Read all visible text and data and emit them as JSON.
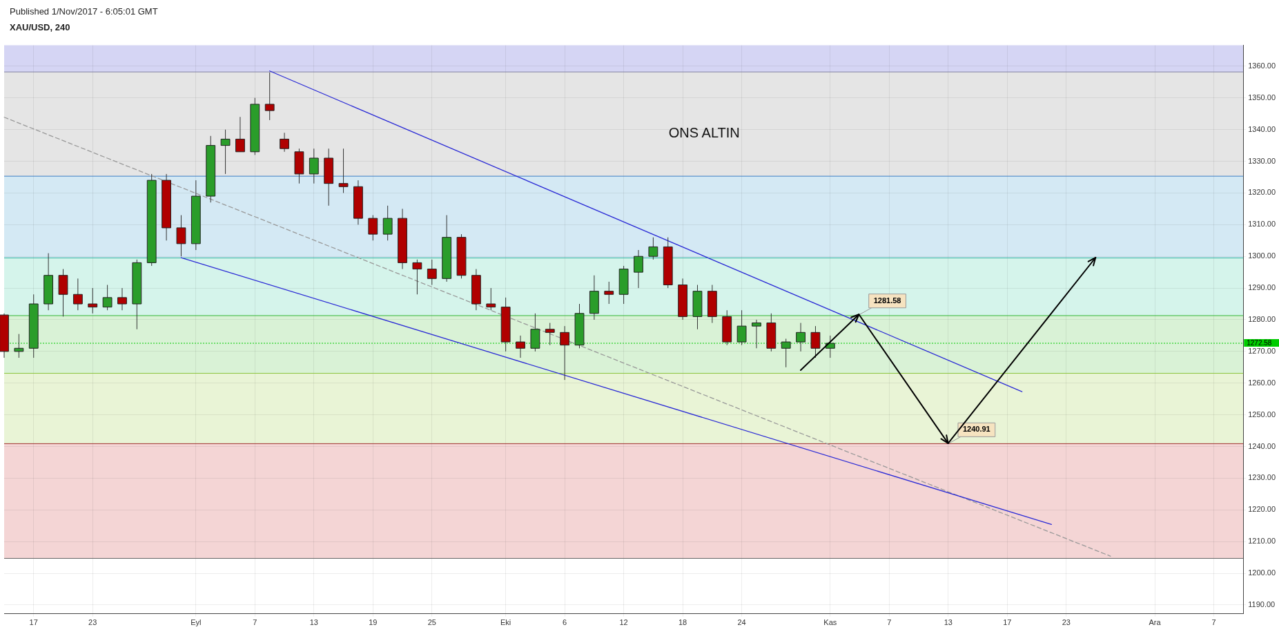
{
  "chart_data": {
    "type": "candlestick",
    "title": "XAU/USD, 240",
    "annotations": [
      "Published 1/Nov/2017 - 6:05:01 GMT",
      "ONS ALTIN",
      {
        "text": "1281.58",
        "y": 1281.58
      },
      {
        "text": "1240.91",
        "y": 1240.91
      }
    ],
    "categories": [
      null,
      null,
      "17",
      null,
      null,
      null,
      "23",
      null,
      null,
      null,
      null,
      null,
      null,
      "Eyl",
      null,
      null,
      null,
      "7",
      null,
      null,
      null,
      "13",
      null,
      null,
      null,
      "19",
      null,
      null,
      null,
      "25",
      null,
      null,
      null,
      null,
      "Eki",
      null,
      null,
      null,
      "6",
      null,
      null,
      null,
      "12",
      null,
      null,
      null,
      "18",
      null,
      null,
      null,
      "24",
      null,
      null,
      null,
      null,
      null,
      "Kas",
      null,
      null,
      null,
      "7",
      null,
      null,
      null,
      "13",
      null,
      null,
      null,
      "17",
      null,
      null,
      null,
      "23",
      null,
      null,
      null,
      null,
      null,
      "Ara",
      null,
      null,
      null,
      "7",
      null,
      null
    ],
    "ohlc": [
      [
        1281.5,
        1282,
        1268,
        1270
      ],
      [
        1270,
        1275.5,
        1268,
        1271
      ],
      [
        1271,
        1288,
        1268,
        1285
      ],
      [
        1285,
        1301,
        1283,
        1294
      ],
      [
        1294,
        1296,
        1281,
        1288
      ],
      [
        1288,
        1293,
        1283,
        1285
      ],
      [
        1285,
        1290,
        1282,
        1284
      ],
      [
        1284,
        1291,
        1283,
        1287
      ],
      [
        1287,
        1290,
        1283,
        1285
      ],
      [
        1285,
        1299,
        1277,
        1298
      ],
      [
        1298,
        1326,
        1297,
        1324
      ],
      [
        1324,
        1326,
        1305,
        1309
      ],
      [
        1309,
        1313,
        1300,
        1304
      ],
      [
        1304,
        1324,
        1302,
        1319
      ],
      [
        1319,
        1338,
        1317,
        1335
      ],
      [
        1335,
        1340,
        1326,
        1337
      ],
      [
        1337,
        1344,
        1333,
        1333
      ],
      [
        1333,
        1350,
        1332,
        1348
      ],
      [
        1348,
        1358,
        1343,
        1346
      ],
      [
        1337,
        1339,
        1333,
        1334
      ],
      [
        1333,
        1334,
        1323,
        1326
      ],
      [
        1326,
        1334,
        1323,
        1331
      ],
      [
        1331,
        1334,
        1316,
        1323
      ],
      [
        1323,
        1334,
        1320,
        1322
      ],
      [
        1322,
        1324,
        1310,
        1312
      ],
      [
        1312,
        1313,
        1305,
        1307
      ],
      [
        1307,
        1316,
        1305,
        1312
      ],
      [
        1312,
        1315,
        1296,
        1298
      ],
      [
        1298,
        1299,
        1288,
        1296
      ],
      [
        1296,
        1299,
        1291,
        1293
      ],
      [
        1293,
        1313,
        1292,
        1306
      ],
      [
        1306,
        1307,
        1293,
        1294
      ],
      [
        1294,
        1296,
        1283,
        1285
      ],
      [
        1285,
        1290,
        1283,
        1284
      ],
      [
        1284,
        1287,
        1270,
        1273
      ],
      [
        1273,
        1275,
        1268,
        1271
      ],
      [
        1271,
        1282,
        1270,
        1277
      ],
      [
        1277,
        1279,
        1272,
        1276
      ],
      [
        1276,
        1278,
        1261,
        1272
      ],
      [
        1272,
        1285,
        1271,
        1282
      ],
      [
        1282,
        1294,
        1280,
        1289
      ],
      [
        1289,
        1292,
        1285,
        1288
      ],
      [
        1288,
        1297,
        1285,
        1296
      ],
      [
        1295,
        1302,
        1290,
        1300
      ],
      [
        1300,
        1306,
        1299,
        1303
      ],
      [
        1303,
        1306,
        1290,
        1291
      ],
      [
        1291,
        1293,
        1280,
        1281
      ],
      [
        1281,
        1291,
        1277,
        1289
      ],
      [
        1289,
        1291,
        1279,
        1281
      ],
      [
        1281,
        1283,
        1272,
        1273
      ],
      [
        1273,
        1283,
        1272,
        1278
      ],
      [
        1278,
        1280,
        1271,
        1279
      ],
      [
        1279,
        1282,
        1270,
        1271
      ],
      [
        1271,
        1274,
        1265,
        1273
      ],
      [
        1273,
        1279,
        1270,
        1276
      ],
      [
        1276,
        1278,
        1268,
        1271
      ],
      [
        1271,
        1275,
        1268,
        1272.58
      ],
      null,
      null,
      null,
      null,
      null,
      null,
      null,
      null,
      null,
      null,
      null,
      null,
      null,
      null,
      null,
      null,
      null,
      null,
      null,
      null,
      null,
      null,
      null,
      null,
      null,
      null,
      null,
      null
    ],
    "colors": [
      "#b00000",
      "#2a9d2a",
      "#2a9d2a",
      "#2a9d2a",
      "#b00000",
      "#b00000",
      "#b00000",
      "#2a9d2a",
      "#b00000",
      "#2a9d2a",
      "#2a9d2a",
      "#b00000",
      "#b00000",
      "#2a9d2a",
      "#2a9d2a",
      "#2a9d2a",
      "#b00000",
      "#2a9d2a",
      "#b00000",
      "#b00000",
      "#b00000",
      "#2a9d2a",
      "#b00000",
      "#b00000",
      "#b00000",
      "#b00000",
      "#2a9d2a",
      "#b00000",
      "#b00000",
      "#b00000",
      "#2a9d2a",
      "#b00000",
      "#b00000",
      "#b00000",
      "#b00000",
      "#b00000",
      "#2a9d2a",
      "#b00000",
      "#b00000",
      "#2a9d2a",
      "#2a9d2a",
      "#b00000",
      "#2a9d2a",
      "#2a9d2a",
      "#2a9d2a",
      "#b00000",
      "#b00000",
      "#2a9d2a",
      "#b00000",
      "#b00000",
      "#2a9d2a",
      "#2a9d2a",
      "#b00000",
      "#2a9d2a",
      "#2a9d2a",
      "#b00000",
      "#2a9d2a",
      null,
      null,
      null,
      null,
      null,
      null,
      null,
      null,
      null,
      null,
      null,
      null,
      null,
      null,
      null,
      null,
      null,
      null,
      null,
      null,
      null,
      null,
      null,
      null,
      null,
      null,
      null,
      null
    ],
    "series": [
      {
        "type": "line",
        "color": "#2b2bd6",
        "line_style": "solid",
        "values": [
          null,
          null,
          null,
          null,
          null,
          null,
          null,
          null,
          null,
          null,
          null,
          null,
          null,
          null,
          null,
          null,
          null,
          null,
          1358.5,
          null,
          null,
          null,
          null,
          null,
          null,
          null,
          null,
          null,
          null,
          null,
          null,
          null,
          null,
          null,
          null,
          null,
          null,
          null,
          null,
          null,
          null,
          null,
          null,
          null,
          null,
          null,
          null,
          null,
          null,
          null,
          null,
          null,
          null,
          null,
          null,
          null,
          null,
          null,
          null,
          null,
          null,
          null,
          null,
          null,
          null,
          null,
          null,
          null,
          null,
          1257.3,
          null,
          null,
          null,
          null,
          null,
          null,
          null,
          null,
          null,
          null,
          null,
          null,
          null,
          null,
          null
        ]
      },
      {
        "type": "line",
        "color": "#2b2bd6",
        "line_style": "solid",
        "values": [
          null,
          null,
          null,
          null,
          null,
          null,
          null,
          null,
          null,
          null,
          null,
          null,
          1299.6,
          null,
          null,
          null,
          null,
          null,
          null,
          null,
          null,
          null,
          null,
          null,
          null,
          null,
          null,
          null,
          null,
          null,
          null,
          null,
          null,
          null,
          null,
          null,
          null,
          null,
          null,
          null,
          null,
          null,
          null,
          null,
          null,
          null,
          null,
          null,
          null,
          null,
          null,
          null,
          null,
          null,
          null,
          null,
          null,
          null,
          null,
          null,
          null,
          null,
          null,
          null,
          null,
          null,
          null,
          null,
          null,
          null,
          null,
          1215.4,
          null,
          null,
          null,
          null,
          null,
          null,
          null,
          null,
          null,
          null,
          null,
          null,
          null
        ]
      },
      {
        "type": "line",
        "color": "#999999",
        "line_style": "dashed",
        "values": [
          1343.9,
          null,
          null,
          null,
          null,
          null,
          null,
          null,
          null,
          null,
          null,
          null,
          null,
          null,
          null,
          null,
          null,
          null,
          null,
          null,
          null,
          null,
          null,
          null,
          null,
          null,
          null,
          null,
          null,
          null,
          null,
          null,
          null,
          null,
          null,
          null,
          null,
          null,
          null,
          null,
          null,
          null,
          null,
          null,
          null,
          null,
          null,
          null,
          null,
          null,
          null,
          null,
          null,
          null,
          null,
          null,
          null,
          null,
          null,
          null,
          null,
          null,
          null,
          null,
          null,
          null,
          null,
          null,
          null,
          null,
          null,
          null,
          null,
          null,
          null,
          1205.4,
          null,
          null,
          null,
          null,
          null,
          null,
          null,
          null,
          null
        ]
      }
    ],
    "bands": [
      {
        "axis": "y",
        "from": 1358.2,
        "to": 1366.6,
        "color": "#d5d5f4"
      },
      {
        "axis": "y",
        "from": 1325.3,
        "to": 1358.2,
        "color": "#e5e5e5"
      },
      {
        "axis": "y",
        "from": 1299.5,
        "to": 1325.3,
        "color": "#d4e9f4"
      },
      {
        "axis": "y",
        "from": 1281.3,
        "to": 1299.5,
        "color": "#d5f4eb"
      },
      {
        "axis": "y",
        "from": 1263.1,
        "to": 1281.3,
        "color": "#d9f2d6"
      },
      {
        "axis": "y",
        "from": 1240.9,
        "to": 1263.1,
        "color": "#e9f4d6"
      },
      {
        "axis": "y",
        "from": 1204.7,
        "to": 1240.9,
        "color": "#f4d5d5"
      }
    ],
    "ref_lines": [
      {
        "axis": "y",
        "value": 1358.2,
        "color": "#8080a0"
      },
      {
        "axis": "y",
        "value": 1325.3,
        "color": "#3d7fc4"
      },
      {
        "axis": "y",
        "value": 1299.5,
        "color": "#33b5a0"
      },
      {
        "axis": "y",
        "value": 1281.3,
        "color": "#33b533"
      },
      {
        "axis": "y",
        "value": 1263.1,
        "color": "#8cc43d"
      },
      {
        "axis": "y",
        "value": 1240.9,
        "color": "#a03030"
      },
      {
        "axis": "y",
        "value": 1204.7,
        "color": "#666666"
      },
      {
        "axis": "y",
        "value": 1272.58,
        "label": "1272.58",
        "color": "#00cc00",
        "line_style": "dotted"
      }
    ],
    "ylim": [
      1187.2,
      1366.6
    ],
    "yticks": [
      {
        "value": 1190,
        "label": "1190.00"
      },
      {
        "value": 1200,
        "label": "1200.00"
      },
      {
        "value": 1210,
        "label": "1210.00"
      },
      {
        "value": 1220,
        "label": "1220.00"
      },
      {
        "value": 1230,
        "label": "1230.00"
      },
      {
        "value": 1240,
        "label": "1240.00"
      },
      {
        "value": 1250,
        "label": "1250.00"
      },
      {
        "value": 1260,
        "label": "1260.00"
      },
      {
        "value": 1270,
        "label": "1270.00"
      },
      {
        "value": 1280,
        "label": "1280.00"
      },
      {
        "value": 1290,
        "label": "1290.00"
      },
      {
        "value": 1300,
        "label": "1300.00"
      },
      {
        "value": 1310,
        "label": "1310.00"
      },
      {
        "value": 1320,
        "label": "1320.00"
      },
      {
        "value": 1330,
        "label": "1330.00"
      },
      {
        "value": 1340,
        "label": "1340.00"
      },
      {
        "value": 1350,
        "label": "1350.00"
      },
      {
        "value": 1360,
        "label": "1360.00"
      }
    ],
    "grid": true
  }
}
